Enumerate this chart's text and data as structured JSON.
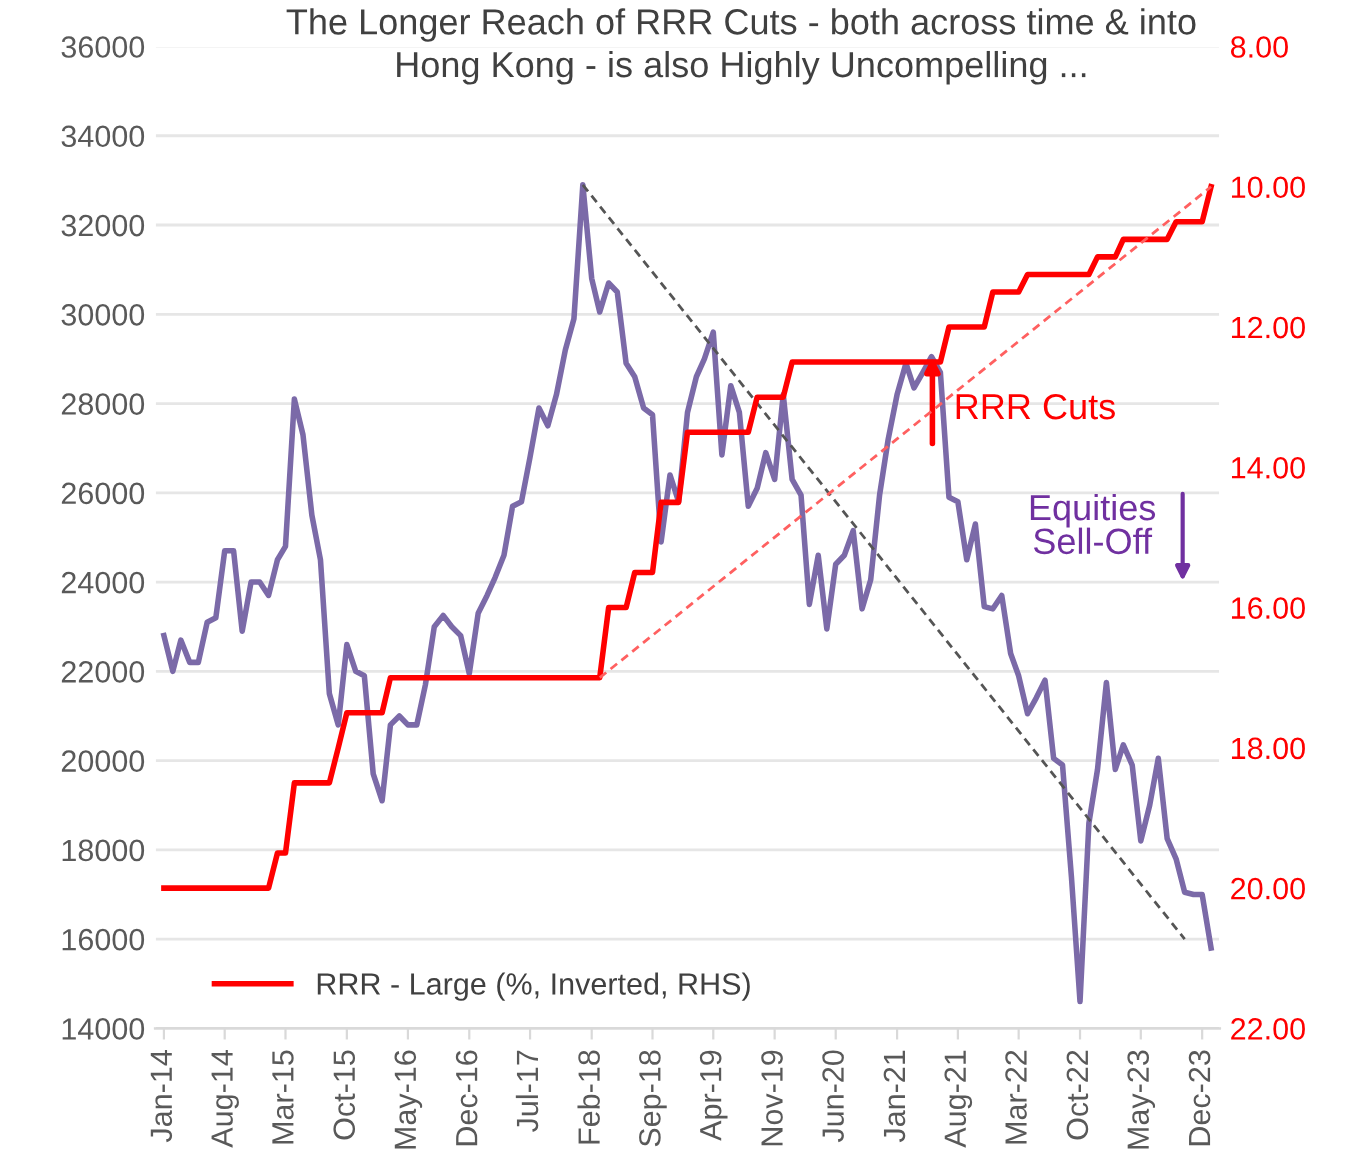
{
  "chart_data": {
    "type": "line",
    "title": "The Longer Reach of RRR Cuts - both across time & into Hong Kong - is also Highly Uncompelling ...",
    "x": [
      "2014-01",
      "2014-02",
      "2014-03",
      "2014-04",
      "2014-05",
      "2014-06",
      "2014-07",
      "2014-08",
      "2014-09",
      "2014-10",
      "2014-11",
      "2014-12",
      "2015-01",
      "2015-02",
      "2015-03",
      "2015-04",
      "2015-05",
      "2015-06",
      "2015-07",
      "2015-08",
      "2015-09",
      "2015-10",
      "2015-11",
      "2015-12",
      "2016-01",
      "2016-02",
      "2016-03",
      "2016-04",
      "2016-05",
      "2016-06",
      "2016-07",
      "2016-08",
      "2016-09",
      "2016-10",
      "2016-11",
      "2016-12",
      "2017-01",
      "2017-02",
      "2017-03",
      "2017-04",
      "2017-05",
      "2017-06",
      "2017-07",
      "2017-08",
      "2017-09",
      "2017-10",
      "2017-11",
      "2017-12",
      "2018-01",
      "2018-02",
      "2018-03",
      "2018-04",
      "2018-05",
      "2018-06",
      "2018-07",
      "2018-08",
      "2018-09",
      "2018-10",
      "2018-11",
      "2018-12",
      "2019-01",
      "2019-02",
      "2019-03",
      "2019-04",
      "2019-05",
      "2019-06",
      "2019-07",
      "2019-08",
      "2019-09",
      "2019-10",
      "2019-11",
      "2019-12",
      "2020-01",
      "2020-02",
      "2020-03",
      "2020-04",
      "2020-05",
      "2020-06",
      "2020-07",
      "2020-08",
      "2020-09",
      "2020-10",
      "2020-11",
      "2020-12",
      "2021-01",
      "2021-02",
      "2021-03",
      "2021-04",
      "2021-05",
      "2021-06",
      "2021-07",
      "2021-08",
      "2021-09",
      "2021-10",
      "2021-11",
      "2021-12",
      "2022-01",
      "2022-02",
      "2022-03",
      "2022-04",
      "2022-05",
      "2022-06",
      "2022-07",
      "2022-08",
      "2022-09",
      "2022-10",
      "2022-11",
      "2022-12",
      "2023-01",
      "2023-02",
      "2023-03",
      "2023-04",
      "2023-05",
      "2023-06",
      "2023-07",
      "2023-08",
      "2023-09",
      "2023-10",
      "2023-11",
      "2023-12",
      "2024-01"
    ],
    "series": [
      {
        "color": "#7b6aa8",
        "values": [
          22800,
          22000,
          22700,
          22200,
          22200,
          23100,
          23200,
          24700,
          24700,
          22900,
          24000,
          24000,
          23700,
          24500,
          24800,
          28100,
          27300,
          25500,
          24500,
          21500,
          20800,
          22600,
          22000,
          21900,
          19700,
          19100,
          20800,
          21000,
          20800,
          20800,
          21700,
          23000,
          23250,
          23000,
          22800,
          21950,
          23300,
          23700,
          24100,
          24600,
          25700,
          25800,
          26800,
          27900,
          27500,
          28200,
          29200,
          29900,
          32900,
          30800,
          30050,
          30700,
          30500,
          28900,
          28600,
          27900,
          27750,
          24900,
          26400,
          25800,
          27800,
          28600,
          29000,
          29600,
          26850,
          28400,
          27800,
          25700,
          26100,
          26900,
          26300,
          28200,
          26300,
          25950,
          23500,
          24600,
          22950,
          24400,
          24600,
          25150,
          23400,
          24050,
          25950,
          27200,
          28200,
          28900,
          28350,
          28700,
          29050,
          28700,
          25900,
          25800,
          24500,
          25300,
          23450,
          23400,
          23700,
          22400,
          21900,
          21050,
          21400,
          21800,
          20050,
          19900,
          17400,
          14600,
          18600,
          19800,
          21750,
          19800,
          20350,
          19900,
          18200,
          19000,
          20050,
          18250,
          17800,
          17050,
          17000,
          17000,
          15800
        ]
      },
      {
        "name": "RRR - Large (%, Inverted, RHS)",
        "color": "#ff0000",
        "axis": "y2",
        "values": [
          20.0,
          20.0,
          20.0,
          20.0,
          20.0,
          20.0,
          20.0,
          20.0,
          20.0,
          20.0,
          20.0,
          20.0,
          20.0,
          19.5,
          19.5,
          18.5,
          18.5,
          18.5,
          18.5,
          18.5,
          18.0,
          17.5,
          17.5,
          17.5,
          17.5,
          17.5,
          17.0,
          17.0,
          17.0,
          17.0,
          17.0,
          17.0,
          17.0,
          17.0,
          17.0,
          17.0,
          17.0,
          17.0,
          17.0,
          17.0,
          17.0,
          17.0,
          17.0,
          17.0,
          17.0,
          17.0,
          17.0,
          17.0,
          17.0,
          17.0,
          17.0,
          16.0,
          16.0,
          16.0,
          15.5,
          15.5,
          15.5,
          14.5,
          14.5,
          14.5,
          13.5,
          13.5,
          13.5,
          13.5,
          13.5,
          13.5,
          13.5,
          13.5,
          13.0,
          13.0,
          13.0,
          13.0,
          12.5,
          12.5,
          12.5,
          12.5,
          12.5,
          12.5,
          12.5,
          12.5,
          12.5,
          12.5,
          12.5,
          12.5,
          12.5,
          12.5,
          12.5,
          12.5,
          12.5,
          12.5,
          12.0,
          12.0,
          12.0,
          12.0,
          12.0,
          11.5,
          11.5,
          11.5,
          11.5,
          11.25,
          11.25,
          11.25,
          11.25,
          11.25,
          11.25,
          11.25,
          11.25,
          11.0,
          11.0,
          11.0,
          10.75,
          10.75,
          10.75,
          10.75,
          10.75,
          10.75,
          10.5,
          10.5,
          10.5,
          10.5,
          10.0
        ]
      },
      {
        "color": "#555555",
        "line_style": "dashed",
        "x": [
          "2018-01",
          "2023-10"
        ],
        "values": [
          32900,
          16000
        ]
      },
      {
        "color": "#ff6060",
        "line_style": "dashed",
        "axis": "y2",
        "x": [
          "2018-03",
          "2024-01"
        ],
        "values": [
          17.0,
          10.0
        ]
      }
    ],
    "annotations": [
      "RRR Cuts",
      "Equities Sell-Off"
    ],
    "xlim": [
      "2013-12",
      "2024-02"
    ],
    "xticks": [
      {
        "value": "2014-01",
        "label": "Jan-14"
      },
      {
        "value": "2014-08",
        "label": "Aug-14"
      },
      {
        "value": "2015-03",
        "label": "Mar-15"
      },
      {
        "value": "2015-10",
        "label": "Oct-15"
      },
      {
        "value": "2016-05",
        "label": "May-16"
      },
      {
        "value": "2016-12",
        "label": "Dec-16"
      },
      {
        "value": "2017-07",
        "label": "Jul-17"
      },
      {
        "value": "2018-02",
        "label": "Feb-18"
      },
      {
        "value": "2018-09",
        "label": "Sep-18"
      },
      {
        "value": "2019-04",
        "label": "Apr-19"
      },
      {
        "value": "2019-11",
        "label": "Nov-19"
      },
      {
        "value": "2020-06",
        "label": "Jun-20"
      },
      {
        "value": "2021-01",
        "label": "Jan-21"
      },
      {
        "value": "2021-08",
        "label": "Aug-21"
      },
      {
        "value": "2022-03",
        "label": "Mar-22"
      },
      {
        "value": "2022-10",
        "label": "Oct-22"
      },
      {
        "value": "2023-05",
        "label": "May-23"
      },
      {
        "value": "2023-12",
        "label": "Dec-23"
      }
    ],
    "ylim": [
      14000,
      36000
    ],
    "yticks": [
      14000,
      16000,
      18000,
      20000,
      22000,
      24000,
      26000,
      28000,
      30000,
      32000,
      34000,
      36000
    ],
    "y2lim": [
      22,
      8
    ],
    "y2ticks": [
      {
        "value": 22,
        "label": "22.00"
      },
      {
        "value": 20,
        "label": "20.00"
      },
      {
        "value": 18,
        "label": "18.00"
      },
      {
        "value": 16,
        "label": "16.00"
      },
      {
        "value": 14,
        "label": "14.00"
      },
      {
        "value": 12,
        "label": "12.00"
      },
      {
        "value": 10,
        "label": "10.00"
      },
      {
        "value": 8,
        "label": "8.00"
      }
    ],
    "grid": "y",
    "legend": "bottom left",
    "line_style": "solid",
    "marker": "none"
  }
}
